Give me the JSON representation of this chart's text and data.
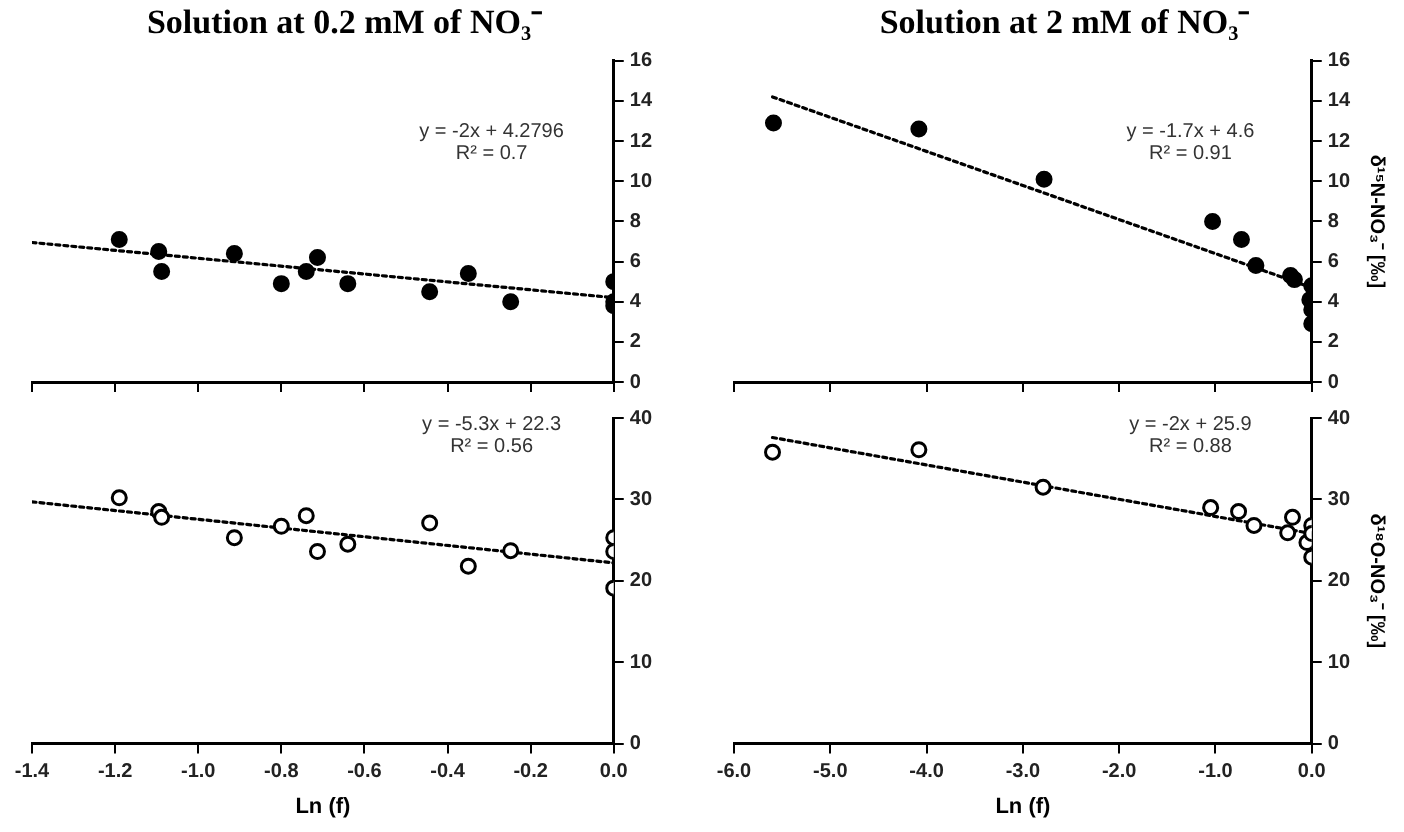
{
  "chart_data": [
    {
      "type": "scatter",
      "title": "Solution at 0.2 mM of NO₃⁻",
      "annotations": [
        "y = -2x + 4.2796",
        "R² = 0.7"
      ],
      "xlim": [
        -1.4,
        0
      ],
      "xticks": [
        -1.4,
        -1.2,
        -1,
        -0.8,
        -0.6,
        -0.4,
        -0.2,
        0
      ],
      "ylim": [
        0,
        16
      ],
      "yticks": [
        0,
        2,
        4,
        6,
        8,
        10,
        12,
        14,
        16
      ],
      "tick_labels": "y",
      "grid": false,
      "legend": false,
      "series": [
        {
          "type": "scatter",
          "marker": "circle",
          "color": "#000000",
          "x": [
            -1.19,
            -1.095,
            -1.088,
            -0.913,
            -0.8,
            -0.74,
            -0.713,
            -0.64,
            -0.443,
            -0.35,
            -0.248,
            0,
            0,
            0
          ],
          "values": [
            7.1,
            6.5,
            5.5,
            6.4,
            4.9,
            5.5,
            6.2,
            4.9,
            4.5,
            5.4,
            4.0,
            5.0,
            4.0,
            3.8
          ]
        },
        {
          "type": "line",
          "marker": "none",
          "line_style": "dotted",
          "color": "#000000",
          "x": [
            -1.4,
            0
          ],
          "values": [
            6.95,
            4.2
          ]
        }
      ]
    },
    {
      "type": "scatter",
      "title": "Solution at 2 mM of NO₃⁻",
      "ylabel": "δ¹⁵N-NO₃⁻ [‰]",
      "annotations": [
        "y = -1.7x + 4.6",
        "R² = 0.91"
      ],
      "xlim": [
        -6,
        0
      ],
      "xticks": [
        -6,
        -5,
        -4,
        -3,
        -2,
        -1,
        0
      ],
      "ylim": [
        0,
        16
      ],
      "yticks": [
        0,
        2,
        4,
        6,
        8,
        10,
        12,
        14,
        16
      ],
      "tick_labels": "y",
      "grid": false,
      "legend": false,
      "series": [
        {
          "type": "scatter",
          "marker": "circle",
          "color": "#000000",
          "x": [
            -5.59,
            -4.08,
            -2.78,
            -1.03,
            -0.73,
            -0.58,
            -0.22,
            -0.18,
            0,
            -0.02,
            0,
            0
          ],
          "values": [
            12.9,
            12.6,
            10.1,
            8.0,
            7.1,
            5.8,
            5.3,
            5.1,
            4.8,
            4.1,
            3.6,
            2.9
          ]
        },
        {
          "type": "line",
          "marker": "none",
          "line_style": "dotted",
          "color": "#000000",
          "x": [
            -5.6,
            0
          ],
          "values": [
            14.2,
            4.7
          ]
        }
      ]
    },
    {
      "type": "scatter",
      "xlabel": "Ln (f)",
      "annotations": [
        "y = -5.3x + 22.3",
        "R² = 0.56"
      ],
      "xlim": [
        -1.4,
        0
      ],
      "xticks": [
        -1.4,
        -1.2,
        {
          "value": -1,
          "label": "-1.0"
        },
        -0.8,
        -0.6,
        -0.4,
        -0.2,
        {
          "value": 0,
          "label": "0.0"
        }
      ],
      "ylim": [
        0,
        40
      ],
      "yticks": [
        0,
        10,
        20,
        30,
        40
      ],
      "grid": false,
      "legend": false,
      "series": [
        {
          "type": "scatter",
          "marker": "circle",
          "color": "#000000",
          "x": [
            -1.19,
            -1.095,
            -1.088,
            -0.913,
            -0.8,
            -0.74,
            -0.713,
            -0.64,
            -0.443,
            -0.35,
            -0.248,
            0,
            0,
            0
          ],
          "values": [
            30.2,
            28.5,
            27.8,
            25.3,
            26.7,
            28.0,
            23.6,
            24.5,
            27.1,
            21.8,
            23.7,
            25.3,
            23.6,
            19.1
          ]
        },
        {
          "type": "line",
          "marker": "none",
          "line_style": "dotted",
          "color": "#000000",
          "x": [
            -1.4,
            0
          ],
          "values": [
            29.7,
            22.2
          ]
        }
      ]
    },
    {
      "type": "scatter",
      "xlabel": "Ln (f)",
      "ylabel": "δ¹⁸O-NO₃⁻ [‰]",
      "annotations": [
        "y = -2x + 25.9",
        "R² = 0.88"
      ],
      "xlim": [
        -6,
        0
      ],
      "xticks": [
        {
          "value": -6,
          "label": "-6.0"
        },
        {
          "value": -5,
          "label": "-5.0"
        },
        {
          "value": -4,
          "label": "-4.0"
        },
        {
          "value": -3,
          "label": "-3.0"
        },
        {
          "value": -2,
          "label": "-2.0"
        },
        {
          "value": -1,
          "label": "-1.0"
        },
        {
          "value": 0,
          "label": "0.0"
        }
      ],
      "ylim": [
        0,
        40
      ],
      "yticks": [
        0,
        10,
        20,
        30,
        40
      ],
      "grid": false,
      "legend": false,
      "series": [
        {
          "type": "scatter",
          "marker": "circle",
          "color": "#000000",
          "x": [
            -5.6,
            -4.08,
            -2.79,
            -1.05,
            -0.76,
            -0.6,
            -0.25,
            -0.2,
            -0.05,
            0,
            0,
            0
          ],
          "values": [
            35.8,
            36.1,
            31.5,
            29.0,
            28.5,
            26.8,
            25.9,
            27.8,
            24.7,
            26.8,
            25.8,
            22.9
          ]
        },
        {
          "type": "line",
          "marker": "none",
          "line_style": "dotted",
          "color": "#000000",
          "x": [
            -5.6,
            0
          ],
          "values": [
            37.6,
            25.8
          ]
        }
      ]
    }
  ]
}
